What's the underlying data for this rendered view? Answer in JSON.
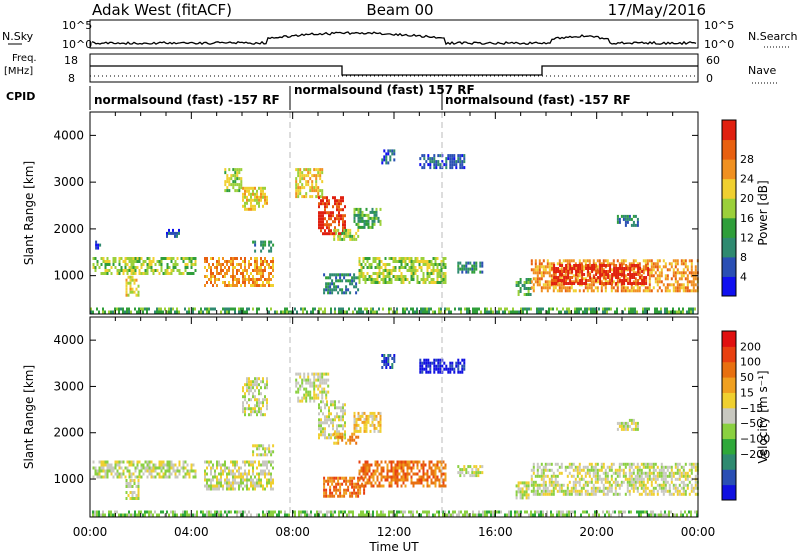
{
  "header": {
    "station": "Adak West (fitACF)",
    "beam": "Beam 00",
    "date": "17/May/2016"
  },
  "summary": {
    "nsky_label": "N.Sky",
    "nsky_ticks": [
      "10^5",
      "10^0"
    ],
    "nsearch_label": "N.Search",
    "nsearch_ticks": [
      "10^5",
      "10^0"
    ],
    "freq_label": "Freq.",
    "freq_unit": "[MHz]",
    "freq_ticks": [
      "18",
      "8"
    ],
    "nave_label": "Nave",
    "nave_ticks": [
      "60",
      "0"
    ],
    "cpid_label": "CPID",
    "cpid_segments": [
      {
        "label": "normalsound (fast) -157 RF"
      },
      {
        "label": "normalsound (fast) 157 RF"
      },
      {
        "label": "normalsound (fast) -157 RF"
      }
    ]
  },
  "chart_data": [
    {
      "type": "heatmap",
      "panel": "power",
      "ylabel": "Slant Range [km]",
      "xlabel": "",
      "ylim": [
        180,
        4500
      ],
      "yticks": [
        1000,
        2000,
        3000,
        4000
      ],
      "xlim": [
        0,
        24
      ],
      "colorbar": {
        "label": "Power [dB]",
        "ticks": [
          "4",
          "8",
          "12",
          "16",
          "20",
          "24",
          "28"
        ],
        "colors": [
          "#1010f0",
          "#2a4fb4",
          "#2f8a70",
          "#2f9e3a",
          "#9bd03a",
          "#f0d030",
          "#f09020",
          "#e86010",
          "#e02010"
        ]
      },
      "regions": [
        {
          "t0": 0.0,
          "t1": 24.0,
          "r0": 200,
          "r1": 320,
          "level": 3
        },
        {
          "t0": 0.1,
          "t1": 4.2,
          "r0": 1050,
          "r1": 1400,
          "level": 4
        },
        {
          "t0": 0.2,
          "t1": 0.5,
          "r0": 1550,
          "r1": 1750,
          "level": 1
        },
        {
          "t0": 1.4,
          "t1": 1.9,
          "r0": 600,
          "r1": 1000,
          "level": 5
        },
        {
          "t0": 3.0,
          "t1": 3.5,
          "r0": 1850,
          "r1": 2000,
          "level": 1
        },
        {
          "t0": 4.5,
          "t1": 7.2,
          "r0": 800,
          "r1": 1400,
          "level": 6
        },
        {
          "t0": 6.0,
          "t1": 7.0,
          "r0": 2400,
          "r1": 2900,
          "level": 5
        },
        {
          "t0": 6.4,
          "t1": 7.2,
          "r0": 1550,
          "r1": 1750,
          "level": 2
        },
        {
          "t0": 5.3,
          "t1": 6.0,
          "r0": 2850,
          "r1": 3300,
          "level": 4
        },
        {
          "t0": 8.1,
          "t1": 9.2,
          "r0": 2700,
          "r1": 3300,
          "level": 5
        },
        {
          "t0": 9.0,
          "t1": 10.1,
          "r0": 1900,
          "r1": 2700,
          "level": 8
        },
        {
          "t0": 9.6,
          "t1": 10.6,
          "r0": 1750,
          "r1": 2000,
          "level": 4
        },
        {
          "t0": 10.4,
          "t1": 11.5,
          "r0": 2050,
          "r1": 2450,
          "level": 3
        },
        {
          "t0": 9.2,
          "t1": 10.6,
          "r0": 650,
          "r1": 1050,
          "level": 2
        },
        {
          "t0": 10.6,
          "t1": 14.0,
          "r0": 850,
          "r1": 1400,
          "level": 4
        },
        {
          "t0": 11.5,
          "t1": 12.0,
          "r0": 3400,
          "r1": 3700,
          "level": 1
        },
        {
          "t0": 13.0,
          "t1": 14.8,
          "r0": 3300,
          "r1": 3600,
          "level": 1
        },
        {
          "t0": 14.5,
          "t1": 15.5,
          "r0": 1050,
          "r1": 1300,
          "level": 2
        },
        {
          "t0": 16.8,
          "t1": 17.4,
          "r0": 600,
          "r1": 950,
          "level": 3
        },
        {
          "t0": 17.4,
          "t1": 24.0,
          "r0": 700,
          "r1": 1350,
          "level": 6
        },
        {
          "t0": 18.2,
          "t1": 22.0,
          "r0": 850,
          "r1": 1250,
          "level": 8
        },
        {
          "t0": 20.8,
          "t1": 21.6,
          "r0": 2100,
          "r1": 2300,
          "level": 2
        }
      ]
    },
    {
      "type": "heatmap",
      "panel": "velocity",
      "ylabel": "Slant Range [km]",
      "xlabel": "Time UT",
      "ylim": [
        180,
        4500
      ],
      "yticks": [
        1000,
        2000,
        3000,
        4000
      ],
      "xlim": [
        0,
        24
      ],
      "xticks": [
        "00:00",
        "04:00",
        "08:00",
        "12:00",
        "16:00",
        "20:00",
        "00:00"
      ],
      "colorbar": {
        "label": "Velocity [m s⁻¹]",
        "ticks": [
          "200",
          "100",
          "50",
          "15",
          "−15",
          "−50",
          "−100",
          "−200"
        ],
        "colors": [
          "#1010e0",
          "#2a4fb4",
          "#2f8a70",
          "#2fa83a",
          "#8ad040",
          "#c8c8c0",
          "#f0d030",
          "#f0a020",
          "#e87010",
          "#e84010",
          "#e01010"
        ]
      },
      "regions": [
        {
          "t0": 0.0,
          "t1": 24.0,
          "r0": 200,
          "r1": 320,
          "level": 4
        },
        {
          "t0": 0.1,
          "t1": 4.2,
          "r0": 1050,
          "r1": 1400,
          "level": 5
        },
        {
          "t0": 1.4,
          "t1": 1.9,
          "r0": 600,
          "r1": 1000,
          "level": 5
        },
        {
          "t0": 4.5,
          "t1": 7.2,
          "r0": 800,
          "r1": 1400,
          "level": 5
        },
        {
          "t0": 6.0,
          "t1": 7.0,
          "r0": 2400,
          "r1": 3200,
          "level": 5
        },
        {
          "t0": 6.4,
          "t1": 7.2,
          "r0": 1550,
          "r1": 1750,
          "level": 5
        },
        {
          "t0": 8.1,
          "t1": 9.4,
          "r0": 2700,
          "r1": 3300,
          "level": 5
        },
        {
          "t0": 9.0,
          "t1": 10.1,
          "r0": 1900,
          "r1": 2700,
          "level": 5
        },
        {
          "t0": 9.6,
          "t1": 10.6,
          "r0": 1750,
          "r1": 2000,
          "level": 7
        },
        {
          "t0": 10.4,
          "t1": 11.5,
          "r0": 2050,
          "r1": 2450,
          "level": 6
        },
        {
          "t0": 9.2,
          "t1": 10.8,
          "r0": 650,
          "r1": 1050,
          "level": 8
        },
        {
          "t0": 10.6,
          "t1": 14.0,
          "r0": 850,
          "r1": 1400,
          "level": 8
        },
        {
          "t0": 11.5,
          "t1": 12.0,
          "r0": 3400,
          "r1": 3700,
          "level": 1
        },
        {
          "t0": 13.0,
          "t1": 14.8,
          "r0": 3300,
          "r1": 3600,
          "level": 0
        },
        {
          "t0": 14.5,
          "t1": 15.5,
          "r0": 1050,
          "r1": 1300,
          "level": 5
        },
        {
          "t0": 16.8,
          "t1": 17.4,
          "r0": 600,
          "r1": 950,
          "level": 5
        },
        {
          "t0": 17.4,
          "t1": 24.0,
          "r0": 700,
          "r1": 1350,
          "level": 5
        },
        {
          "t0": 20.8,
          "t1": 21.6,
          "r0": 2100,
          "r1": 2300,
          "level": 5
        }
      ]
    }
  ]
}
